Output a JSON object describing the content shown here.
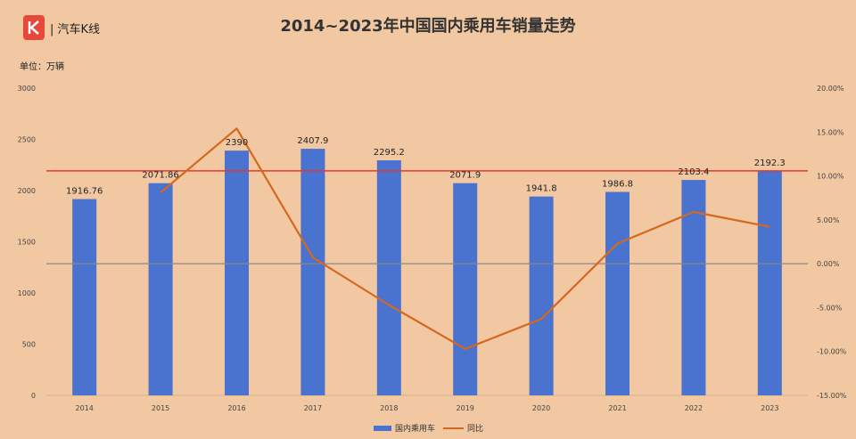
{
  "header": {
    "logo_text": "| 汽车K线",
    "title": "2014~2023年中国国内乘用车销量走势",
    "unit": "单位：万辆"
  },
  "colors": {
    "background": "#f2c8a2",
    "bar": "#4a72cf",
    "line": "#d4691e",
    "reference_line": "#e53a2a",
    "zero_line": "#888888"
  },
  "chart_data": {
    "type": "bar",
    "title": "2014~2023年中国国内乘用车销量走势",
    "categories": [
      "2014",
      "2015",
      "2016",
      "2017",
      "2018",
      "2019",
      "2020",
      "2021",
      "2022",
      "2023"
    ],
    "series": [
      {
        "name": "国内乘用车",
        "type": "bar",
        "axis": "left",
        "values": [
          1916.76,
          2071.86,
          2390,
          2407.9,
          2295.2,
          2071.9,
          1941.8,
          1986.8,
          2103.4,
          2192.3
        ],
        "labels": [
          "1916.76",
          "2071.86",
          "2390",
          "2407.9",
          "2295.2",
          "2071.9",
          "1941.8",
          "1986.8",
          "2103.4",
          "2192.3"
        ]
      },
      {
        "name": "同比",
        "type": "line",
        "axis": "right",
        "values": [
          null,
          8.1,
          15.4,
          0.7,
          -4.7,
          -9.7,
          -6.3,
          2.3,
          5.9,
          4.2
        ]
      }
    ],
    "reference_lines": [
      {
        "axis": "left",
        "value": 2192.3
      }
    ],
    "y_left": {
      "ylim": [
        0,
        3000
      ],
      "ticks": [
        "0",
        "500",
        "1000",
        "1500",
        "2000",
        "2500",
        "3000"
      ],
      "tick_values": [
        0,
        500,
        1000,
        1500,
        2000,
        2500,
        3000
      ]
    },
    "y_right": {
      "ylim": [
        -15,
        20
      ],
      "ticks": [
        "-15.00%",
        "-10.00%",
        "-5.00%",
        "0.00%",
        "5.00%",
        "10.00%",
        "15.00%",
        "20.00%"
      ],
      "tick_values": [
        -15,
        -10,
        -5,
        0,
        5,
        10,
        15,
        20
      ]
    },
    "legend_position": "bottom",
    "grid": false
  }
}
